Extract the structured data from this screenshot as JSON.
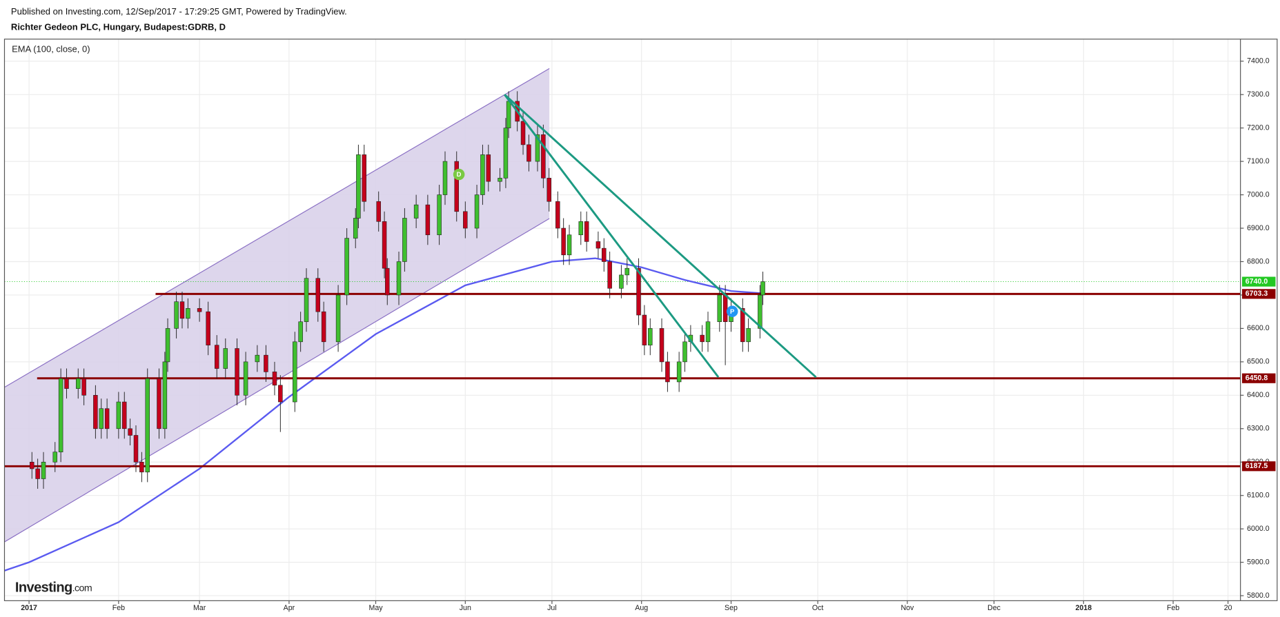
{
  "header": {
    "published": "Published on Investing.com, 12/Sep/2017 - 17:29:25 GMT, Powered by TradingView.",
    "symbol": "Richter Gedeon PLC, Hungary, Budapest:GDRB, D"
  },
  "chart_data": {
    "type": "candlestick",
    "indicator_label": "EMA (100, close, 0)",
    "logo": "Investing",
    "logo_suffix": ".com",
    "up_color": "#3fbf2f",
    "down_color": "#c4001c",
    "x": [
      1,
      3,
      5,
      9,
      11,
      13,
      17,
      19,
      23,
      25,
      27,
      31,
      33,
      35,
      37,
      39,
      41,
      45,
      47,
      48,
      51,
      53,
      55,
      59,
      62,
      65,
      68,
      72,
      75,
      79,
      82,
      85,
      87,
      92,
      94,
      96,
      100,
      102,
      107,
      110,
      113,
      114,
      116,
      121,
      123,
      124,
      128,
      130,
      134,
      138,
      142,
      144,
      148,
      151,
      155,
      157,
      159,
      163,
      165,
      166,
      169,
      171,
      173,
      176,
      178,
      180,
      183,
      185,
      187,
      191,
      193,
      197,
      199,
      201,
      205,
      207,
      211,
      213,
      215,
      219,
      221,
      225,
      227,
      229,
      233,
      235,
      239,
      241,
      243,
      247,
      249,
      253,
      254
    ],
    "open": [
      6200,
      6180,
      6150,
      6200,
      6230,
      6450,
      6420,
      6450,
      6400,
      6300,
      6360,
      6300,
      6380,
      6300,
      6280,
      6200,
      6170,
      6450,
      6300,
      6500,
      6600,
      6680,
      6630,
      6660,
      6650,
      6550,
      6480,
      6540,
      6400,
      6500,
      6520,
      6470,
      6430,
      6380,
      6560,
      6620,
      6750,
      6650,
      6560,
      6700,
      6870,
      6930,
      7120,
      6980,
      6920,
      6780,
      6700,
      6800,
      6930,
      6970,
      6880,
      7000,
      7100,
      6950,
      6900,
      7000,
      7120,
      7040,
      7050,
      7200,
      7280,
      7220,
      7150,
      7100,
      7180,
      7050,
      6980,
      6900,
      6820,
      6880,
      6920,
      6860,
      6840,
      6800,
      6720,
      6760,
      6780,
      6640,
      6550,
      6600,
      6500,
      6440,
      6500,
      6560,
      6580,
      6560,
      6620,
      6700,
      6620,
      6660,
      6560,
      6600,
      6700
    ],
    "high": [
      6230,
      6210,
      6230,
      6260,
      6480,
      6480,
      6480,
      6480,
      6430,
      6390,
      6390,
      6410,
      6410,
      6330,
      6310,
      6230,
      6480,
      6480,
      6530,
      6630,
      6710,
      6710,
      6690,
      6690,
      6680,
      6580,
      6570,
      6570,
      6530,
      6550,
      6550,
      6500,
      6460,
      6590,
      6650,
      6780,
      6780,
      6680,
      6730,
      6900,
      6960,
      7150,
      7150,
      7010,
      6950,
      6810,
      6830,
      6960,
      7000,
      7000,
      7030,
      7130,
      7130,
      6980,
      7030,
      7150,
      7150,
      7080,
      7230,
      7310,
      7310,
      7250,
      7180,
      7210,
      7210,
      7080,
      7010,
      6930,
      6910,
      6950,
      6950,
      6890,
      6870,
      6830,
      6790,
      6810,
      6810,
      6670,
      6630,
      6630,
      6530,
      6530,
      6590,
      6610,
      6610,
      6650,
      6730,
      6730,
      6690,
      6690,
      6630,
      6730,
      6770
    ],
    "low": [
      6150,
      6120,
      6120,
      6170,
      6200,
      6390,
      6390,
      6370,
      6270,
      6270,
      6270,
      6270,
      6270,
      6250,
      6170,
      6140,
      6140,
      6270,
      6270,
      6470,
      6570,
      6600,
      6600,
      6620,
      6520,
      6450,
      6450,
      6370,
      6370,
      6470,
      6440,
      6400,
      6290,
      6350,
      6530,
      6590,
      6620,
      6530,
      6530,
      6670,
      6840,
      6900,
      6950,
      6890,
      6750,
      6670,
      6670,
      6770,
      6900,
      6850,
      6850,
      6970,
      6920,
      6870,
      6870,
      6970,
      7010,
      7010,
      7020,
      7170,
      7190,
      7120,
      7070,
      7070,
      7020,
      6950,
      6870,
      6790,
      6790,
      6850,
      6830,
      6810,
      6770,
      6690,
      6690,
      6730,
      6610,
      6520,
      6520,
      6470,
      6410,
      6410,
      6470,
      6530,
      6530,
      6530,
      6590,
      6490,
      6590,
      6530,
      6530,
      6570,
      6670
    ],
    "close": [
      6180,
      6150,
      6200,
      6230,
      6450,
      6420,
      6450,
      6400,
      6300,
      6360,
      6300,
      6380,
      6300,
      6280,
      6200,
      6170,
      6450,
      6300,
      6500,
      6600,
      6680,
      6630,
      6660,
      6650,
      6550,
      6480,
      6540,
      6400,
      6500,
      6520,
      6470,
      6430,
      6380,
      6560,
      6620,
      6750,
      6650,
      6560,
      6700,
      6870,
      6930,
      7120,
      6980,
      6920,
      6780,
      6700,
      6800,
      6930,
      6970,
      6880,
      7000,
      7100,
      6950,
      6900,
      7000,
      7120,
      7040,
      7050,
      7200,
      7280,
      7220,
      7150,
      7100,
      7180,
      7050,
      6980,
      6900,
      6820,
      6880,
      6920,
      6860,
      6840,
      6800,
      6720,
      6760,
      6780,
      6640,
      6550,
      6600,
      6500,
      6440,
      6500,
      6560,
      6580,
      6560,
      6620,
      6700,
      6620,
      6660,
      6560,
      6600,
      6700,
      6740
    ],
    "ema": {
      "color": "#5a5af0",
      "x": [
        -8.5,
        0,
        31,
        59,
        90,
        120,
        151,
        181,
        196,
        212,
        227,
        243,
        254
      ],
      "values": [
        5875,
        5900,
        6020,
        6180,
        6395,
        6583,
        6729,
        6800,
        6810,
        6783,
        6745,
        6712,
        6705
      ]
    },
    "channel": {
      "color": "#8a6fc4",
      "fill": "#d9d2ea",
      "x": [
        -8.5,
        180.1
      ],
      "upper": [
        6424,
        7378
      ],
      "lower": [
        5961,
        6929
      ]
    },
    "trendlines": [
      {
        "color": "#1c9a82",
        "x": [
          164.6,
          238.6
        ],
        "values": [
          7300,
          6454
        ]
      },
      {
        "color": "#1c9a82",
        "x": [
          164.6,
          272.4
        ],
        "values": [
          7300,
          6454
        ]
      }
    ],
    "levels": [
      {
        "value": 6703.3,
        "x_start": 43.8,
        "color": "#8b0000"
      },
      {
        "value": 6450.8,
        "x_start": 2.8,
        "color": "#8b0000"
      },
      {
        "value": 6187.5,
        "x_start": -8.5,
        "color": "#8b0000"
      }
    ],
    "last_price": {
      "value": 6740,
      "label": "6740.0",
      "color": "#22c822"
    },
    "markers": [
      {
        "label": "D",
        "x": 148.8,
        "value": 7061,
        "color": "#7ac943"
      },
      {
        "label": "P",
        "x": 243.4,
        "value": 6651,
        "color": "#2196f3"
      }
    ],
    "xlim": [
      -8.5,
      419.3
    ],
    "xticks": [
      {
        "value": 0,
        "label": "2017"
      },
      {
        "value": 31,
        "label": "Feb"
      },
      {
        "value": 59,
        "label": "Mar"
      },
      {
        "value": 90,
        "label": "Apr"
      },
      {
        "value": 120,
        "label": "May"
      },
      {
        "value": 151,
        "label": "Jun"
      },
      {
        "value": 181,
        "label": "Jul"
      },
      {
        "value": 212,
        "label": "Aug"
      },
      {
        "value": 243,
        "label": "Sep"
      },
      {
        "value": 273,
        "label": "Oct"
      },
      {
        "value": 304,
        "label": "Nov"
      },
      {
        "value": 334,
        "label": "Dec"
      },
      {
        "value": 365,
        "label": "2018"
      },
      {
        "value": 396,
        "label": "Feb"
      },
      {
        "value": 415,
        "label": "20"
      }
    ],
    "ylim": [
      5785,
      7466
    ],
    "yticks": [
      {
        "value": 5800,
        "label": "5800.0"
      },
      {
        "value": 5900,
        "label": "5900.0"
      },
      {
        "value": 6000,
        "label": "6000.0"
      },
      {
        "value": 6100,
        "label": "6100.0"
      },
      {
        "value": 6200,
        "label": "6200.0"
      },
      {
        "value": 6300,
        "label": "6300.0"
      },
      {
        "value": 6400,
        "label": "6400.0"
      },
      {
        "value": 6500,
        "label": "6500.0"
      },
      {
        "value": 6600,
        "label": "6600.0"
      },
      {
        "value": 6700,
        "label": "6700.0"
      },
      {
        "value": 6800,
        "label": "6800.0"
      },
      {
        "value": 6900,
        "label": "6900.0"
      },
      {
        "value": 7000,
        "label": "7000.0"
      },
      {
        "value": 7100,
        "label": "7100.0"
      },
      {
        "value": 7200,
        "label": "7200.0"
      },
      {
        "value": 7300,
        "label": "7300.0"
      },
      {
        "value": 7400,
        "label": "7400.0"
      }
    ],
    "grid": true
  }
}
